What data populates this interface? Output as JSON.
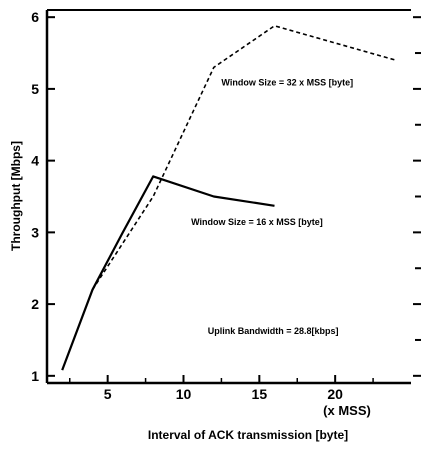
{
  "chart_data": {
    "type": "line",
    "xlabel": "Interval of ACK transmission  [byte]",
    "x_unit": "(x MSS)",
    "ylabel": "Throughput  [Mbps]",
    "xlim": [
      1,
      25
    ],
    "ylim": [
      0.9,
      6.1
    ],
    "x_ticks": [
      5,
      10,
      15,
      20
    ],
    "y_ticks": [
      1,
      2,
      3,
      4,
      5,
      6
    ],
    "grid": false,
    "series": [
      {
        "label": "Window Size = 16 x MSS [byte]",
        "style": "solid",
        "color": "#000000",
        "x": [
          2,
          4,
          6,
          8,
          12,
          16
        ],
        "y": [
          1.08,
          2.2,
          3.0,
          3.78,
          3.5,
          3.37
        ]
      },
      {
        "label": "Window Size = 32 x MSS [byte]",
        "style": "dashed",
        "color": "#000000",
        "x": [
          4,
          8,
          12,
          16,
          24
        ],
        "y": [
          2.2,
          3.5,
          5.3,
          5.88,
          5.4
        ]
      }
    ],
    "annotations": [
      {
        "text": "Window Size = 32 x MSS [byte]",
        "x": 12.5,
        "y": 5.05
      },
      {
        "text": "Window Size = 16 x MSS [byte]",
        "x": 10.5,
        "y": 3.1
      },
      {
        "text": "Uplink Bandwidth = 28.8[kbps]",
        "x": 11.6,
        "y": 1.58
      }
    ]
  }
}
